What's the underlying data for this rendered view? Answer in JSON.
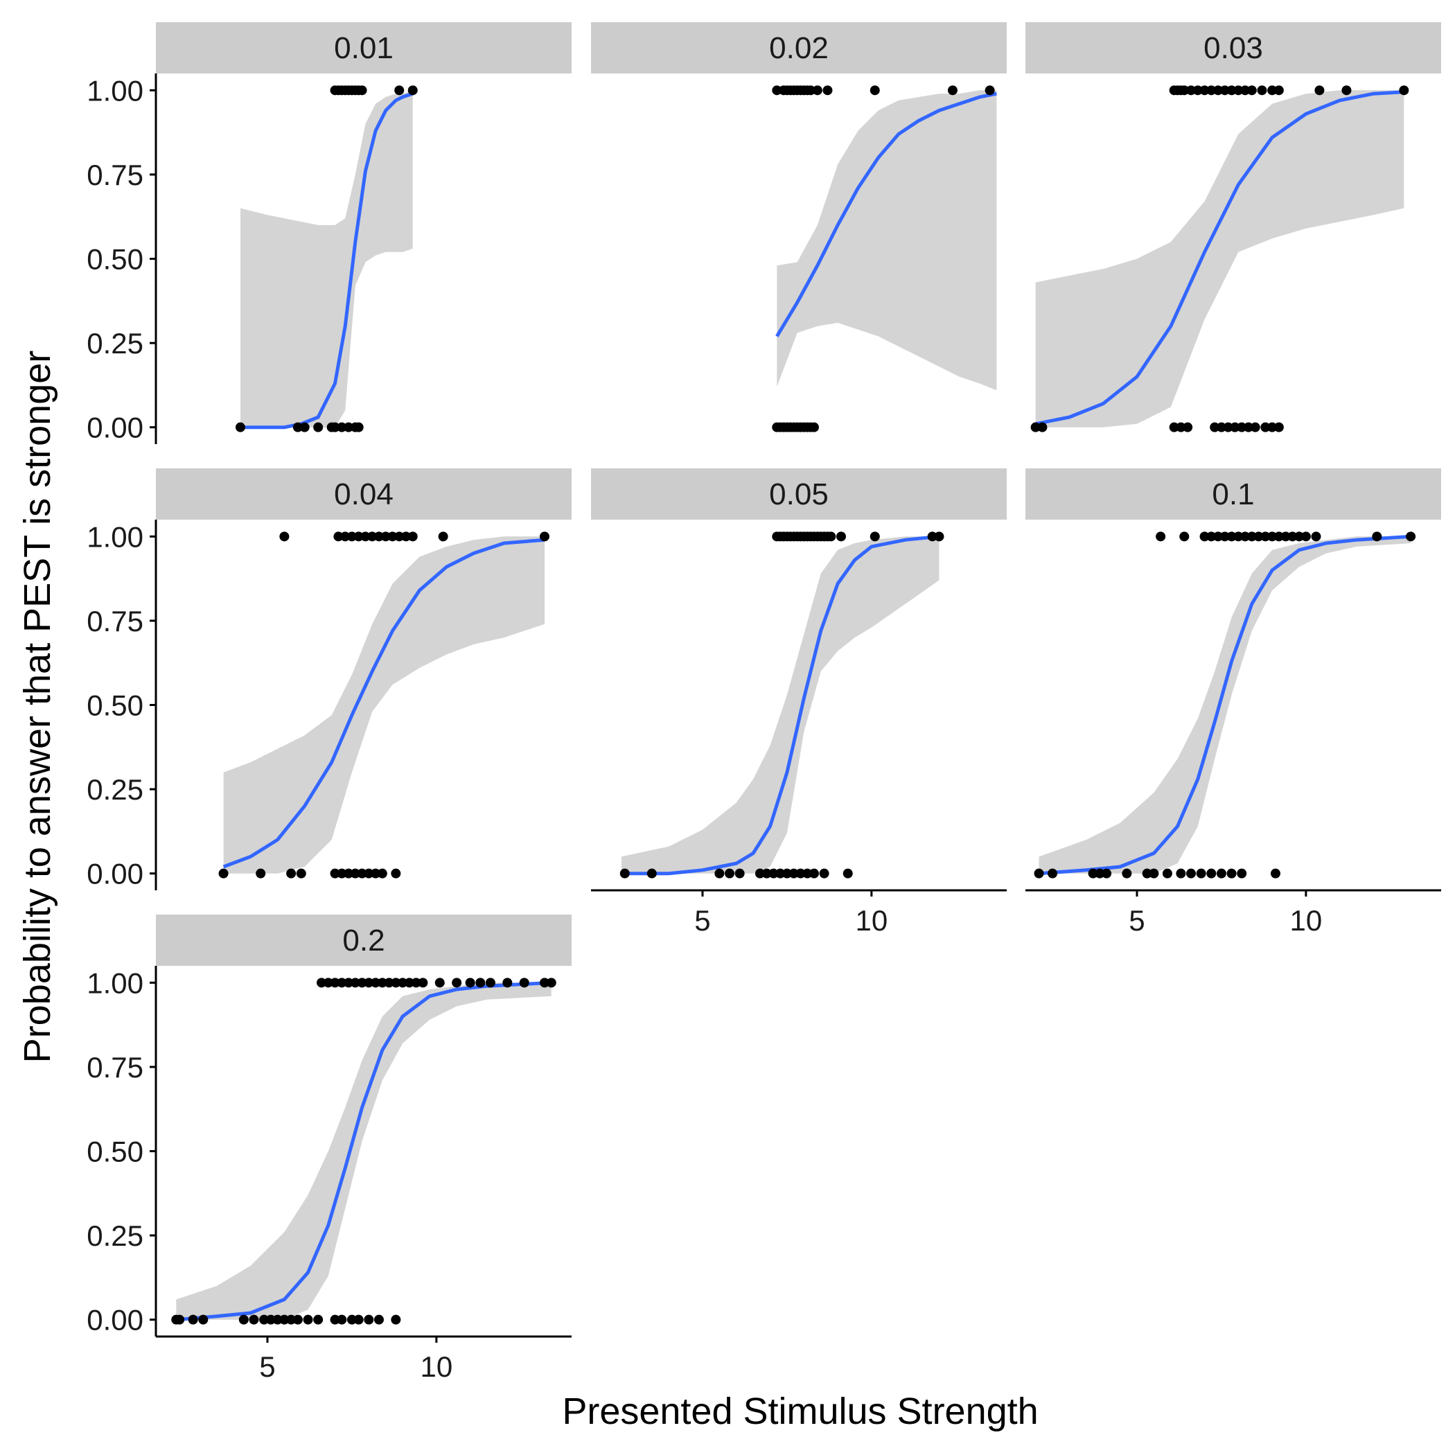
{
  "chart_data": {
    "type": "scatter",
    "xlabel": "Presented Stimulus Strength",
    "ylabel": "Probability to answer that PEST is stronger",
    "xlim": [
      1.7,
      14.0
    ],
    "ylim": [
      -0.05,
      1.05
    ],
    "x_ticks": [
      5,
      10
    ],
    "y_ticks": [
      0,
      0.25,
      0.5,
      0.75,
      1.0
    ],
    "y_tick_labels": [
      "0.00",
      "0.25",
      "0.50",
      "0.75",
      "1.00"
    ],
    "grid": false,
    "colors": {
      "fit_line": "#3366ff",
      "ribbon": "#d4d4d4",
      "points": "#000000",
      "strip": "#cccccc"
    },
    "panels": [
      {
        "label": "0.01",
        "fit": {
          "x": [
            4.2,
            5,
            5.5,
            6,
            6.5,
            7,
            7.3,
            7.6,
            7.9,
            8.2,
            8.5,
            8.8,
            9.0,
            9.3
          ],
          "y": [
            0.0,
            0.0,
            0.0,
            0.01,
            0.03,
            0.13,
            0.3,
            0.55,
            0.76,
            0.88,
            0.94,
            0.97,
            0.98,
            0.99
          ]
        },
        "ci_low": [
          0.0,
          0.0,
          0.0,
          0.0,
          0.0,
          0.0,
          0.05,
          0.42,
          0.49,
          0.51,
          0.52,
          0.52,
          0.52,
          0.53
        ],
        "ci_high": [
          0.65,
          0.63,
          0.62,
          0.61,
          0.6,
          0.6,
          0.62,
          0.75,
          0.9,
          0.96,
          0.98,
          0.99,
          0.99,
          1.0
        ],
        "points_one": [
          7.0,
          7.1,
          7.2,
          7.3,
          7.4,
          7.5,
          7.6,
          7.7,
          7.8,
          8.9,
          9.3
        ],
        "points_zero": [
          4.2,
          5.9,
          6.1,
          6.5,
          6.9,
          7.0,
          7.2,
          7.4,
          7.6,
          7.7
        ]
      },
      {
        "label": "0.02",
        "fit": {
          "x": [
            7.2,
            7.8,
            8.4,
            9,
            9.6,
            10.2,
            10.8,
            11.4,
            12,
            12.6,
            13.2,
            13.7
          ],
          "y": [
            0.27,
            0.37,
            0.48,
            0.6,
            0.71,
            0.8,
            0.87,
            0.91,
            0.94,
            0.96,
            0.98,
            0.99
          ]
        },
        "ci_low": [
          0.12,
          0.28,
          0.3,
          0.31,
          0.29,
          0.27,
          0.24,
          0.21,
          0.18,
          0.15,
          0.13,
          0.11
        ],
        "ci_high": [
          0.48,
          0.49,
          0.6,
          0.78,
          0.88,
          0.94,
          0.97,
          0.98,
          0.99,
          0.99,
          1.0,
          1.0
        ],
        "points_one": [
          7.2,
          7.4,
          7.5,
          7.6,
          7.7,
          7.8,
          7.9,
          8.0,
          8.1,
          8.2,
          8.4,
          8.7,
          10.1,
          12.4,
          13.5
        ],
        "points_zero": [
          7.2,
          7.3,
          7.4,
          7.5,
          7.6,
          7.7,
          7.8,
          7.9,
          8.0,
          8.1,
          8.2,
          8.3
        ]
      },
      {
        "label": "0.03",
        "fit": {
          "x": [
            2.0,
            3,
            4,
            5,
            6,
            7,
            8,
            9,
            10,
            11,
            12,
            12.9
          ],
          "y": [
            0.01,
            0.03,
            0.07,
            0.15,
            0.3,
            0.52,
            0.72,
            0.86,
            0.93,
            0.97,
            0.99,
            0.995
          ]
        },
        "ci_low": [
          0.0,
          0.0,
          0.0,
          0.01,
          0.06,
          0.32,
          0.52,
          0.56,
          0.59,
          0.61,
          0.63,
          0.65
        ],
        "ci_high": [
          0.43,
          0.45,
          0.47,
          0.5,
          0.55,
          0.67,
          0.87,
          0.96,
          0.99,
          1.0,
          1.0,
          1.0
        ],
        "points_one": [
          6.1,
          6.2,
          6.3,
          6.4,
          6.6,
          6.8,
          7.0,
          7.2,
          7.4,
          7.6,
          7.8,
          8.0,
          8.2,
          8.4,
          8.7,
          9.0,
          9.2,
          10.4,
          11.2,
          12.9
        ],
        "points_zero": [
          2.0,
          2.2,
          6.1,
          6.3,
          6.5,
          7.3,
          7.5,
          7.7,
          7.9,
          8.1,
          8.3,
          8.5,
          8.8,
          9.0,
          9.2
        ]
      },
      {
        "label": "0.04",
        "fit": {
          "x": [
            3.7,
            4.5,
            5.3,
            6.1,
            6.9,
            7.5,
            8.1,
            8.7,
            9.5,
            10.3,
            11.1,
            12,
            13.2
          ],
          "y": [
            0.02,
            0.05,
            0.1,
            0.2,
            0.33,
            0.47,
            0.6,
            0.72,
            0.84,
            0.91,
            0.95,
            0.98,
            0.99
          ]
        },
        "ci_low": [
          0.0,
          0.0,
          0.0,
          0.02,
          0.1,
          0.3,
          0.48,
          0.56,
          0.61,
          0.65,
          0.68,
          0.7,
          0.74
        ],
        "ci_high": [
          0.3,
          0.33,
          0.37,
          0.41,
          0.47,
          0.59,
          0.74,
          0.86,
          0.94,
          0.97,
          0.99,
          1.0,
          1.0
        ],
        "points_one": [
          5.5,
          7.1,
          7.3,
          7.5,
          7.7,
          7.9,
          8.1,
          8.3,
          8.5,
          8.7,
          8.9,
          9.1,
          9.3,
          10.2,
          13.2
        ],
        "points_zero": [
          3.7,
          4.8,
          5.7,
          6.0,
          7.0,
          7.2,
          7.4,
          7.6,
          7.8,
          8.0,
          8.2,
          8.4,
          8.8
        ]
      },
      {
        "label": "0.05",
        "fit": {
          "x": [
            2.6,
            4,
            5,
            6,
            6.5,
            7,
            7.5,
            8,
            8.5,
            9,
            9.5,
            10,
            11,
            12
          ],
          "y": [
            0.0,
            0.0,
            0.01,
            0.03,
            0.06,
            0.14,
            0.3,
            0.52,
            0.72,
            0.86,
            0.93,
            0.97,
            0.99,
            1.0
          ]
        },
        "ci_low": [
          0.0,
          0.0,
          0.0,
          0.0,
          0.0,
          0.02,
          0.12,
          0.42,
          0.6,
          0.66,
          0.7,
          0.73,
          0.8,
          0.87
        ],
        "ci_high": [
          0.05,
          0.08,
          0.13,
          0.21,
          0.28,
          0.38,
          0.53,
          0.71,
          0.89,
          0.96,
          0.98,
          0.99,
          1.0,
          1.0
        ],
        "points_one": [
          7.2,
          7.3,
          7.4,
          7.5,
          7.6,
          7.7,
          7.8,
          7.9,
          8.0,
          8.1,
          8.2,
          8.3,
          8.4,
          8.5,
          8.6,
          8.7,
          8.8,
          9.1,
          10.1,
          11.8,
          12.0
        ],
        "points_zero": [
          2.7,
          3.5,
          5.5,
          5.8,
          6.1,
          6.7,
          6.9,
          7.1,
          7.3,
          7.5,
          7.7,
          7.9,
          8.1,
          8.3,
          8.6,
          9.3
        ]
      },
      {
        "label": "0.1",
        "fit": {
          "x": [
            2.1,
            3.5,
            4.5,
            5.5,
            6.2,
            6.8,
            7.3,
            7.8,
            8.4,
            9,
            9.8,
            10.6,
            11.5,
            13.1
          ],
          "y": [
            0.0,
            0.01,
            0.02,
            0.06,
            0.14,
            0.28,
            0.45,
            0.63,
            0.8,
            0.9,
            0.96,
            0.98,
            0.99,
            1.0
          ]
        },
        "ci_low": [
          0.0,
          0.0,
          0.0,
          0.0,
          0.03,
          0.14,
          0.34,
          0.53,
          0.72,
          0.84,
          0.91,
          0.95,
          0.97,
          0.98
        ],
        "ci_high": [
          0.05,
          0.1,
          0.15,
          0.24,
          0.34,
          0.46,
          0.6,
          0.76,
          0.89,
          0.96,
          0.98,
          0.99,
          1.0,
          1.0
        ],
        "points_one": [
          5.7,
          6.4,
          7.0,
          7.2,
          7.4,
          7.6,
          7.8,
          8.0,
          8.2,
          8.4,
          8.6,
          8.8,
          9.0,
          9.2,
          9.4,
          9.6,
          9.8,
          10.0,
          10.3,
          12.1,
          13.1
        ],
        "points_zero": [
          2.1,
          2.5,
          3.7,
          3.9,
          4.1,
          4.7,
          5.3,
          5.5,
          5.9,
          6.3,
          6.6,
          6.9,
          7.2,
          7.5,
          7.8,
          8.1,
          9.1
        ]
      },
      {
        "label": "0.2",
        "fit": {
          "x": [
            2.3,
            3.5,
            4.5,
            5.5,
            6.2,
            6.8,
            7.3,
            7.8,
            8.4,
            9,
            9.8,
            10.6,
            11.5,
            13.4
          ],
          "y": [
            0.0,
            0.01,
            0.02,
            0.06,
            0.14,
            0.28,
            0.45,
            0.63,
            0.8,
            0.9,
            0.96,
            0.98,
            0.99,
            1.0
          ]
        },
        "ci_low": [
          0.0,
          0.0,
          0.0,
          0.0,
          0.03,
          0.13,
          0.33,
          0.53,
          0.71,
          0.82,
          0.89,
          0.93,
          0.95,
          0.96
        ],
        "ci_high": [
          0.06,
          0.1,
          0.16,
          0.26,
          0.37,
          0.5,
          0.63,
          0.77,
          0.9,
          0.96,
          0.98,
          0.99,
          1.0,
          1.0
        ],
        "points_one": [
          6.6,
          6.8,
          7.0,
          7.2,
          7.4,
          7.6,
          7.8,
          8.0,
          8.2,
          8.4,
          8.6,
          8.8,
          9.0,
          9.2,
          9.4,
          9.6,
          10.1,
          10.6,
          11.0,
          11.3,
          11.6,
          12.1,
          12.6,
          13.2,
          13.4
        ],
        "points_zero": [
          2.3,
          2.4,
          2.8,
          3.1,
          4.3,
          4.6,
          4.9,
          5.1,
          5.3,
          5.5,
          5.7,
          5.9,
          6.2,
          6.5,
          7.0,
          7.2,
          7.5,
          7.7,
          8.0,
          8.3,
          8.8
        ]
      }
    ]
  }
}
